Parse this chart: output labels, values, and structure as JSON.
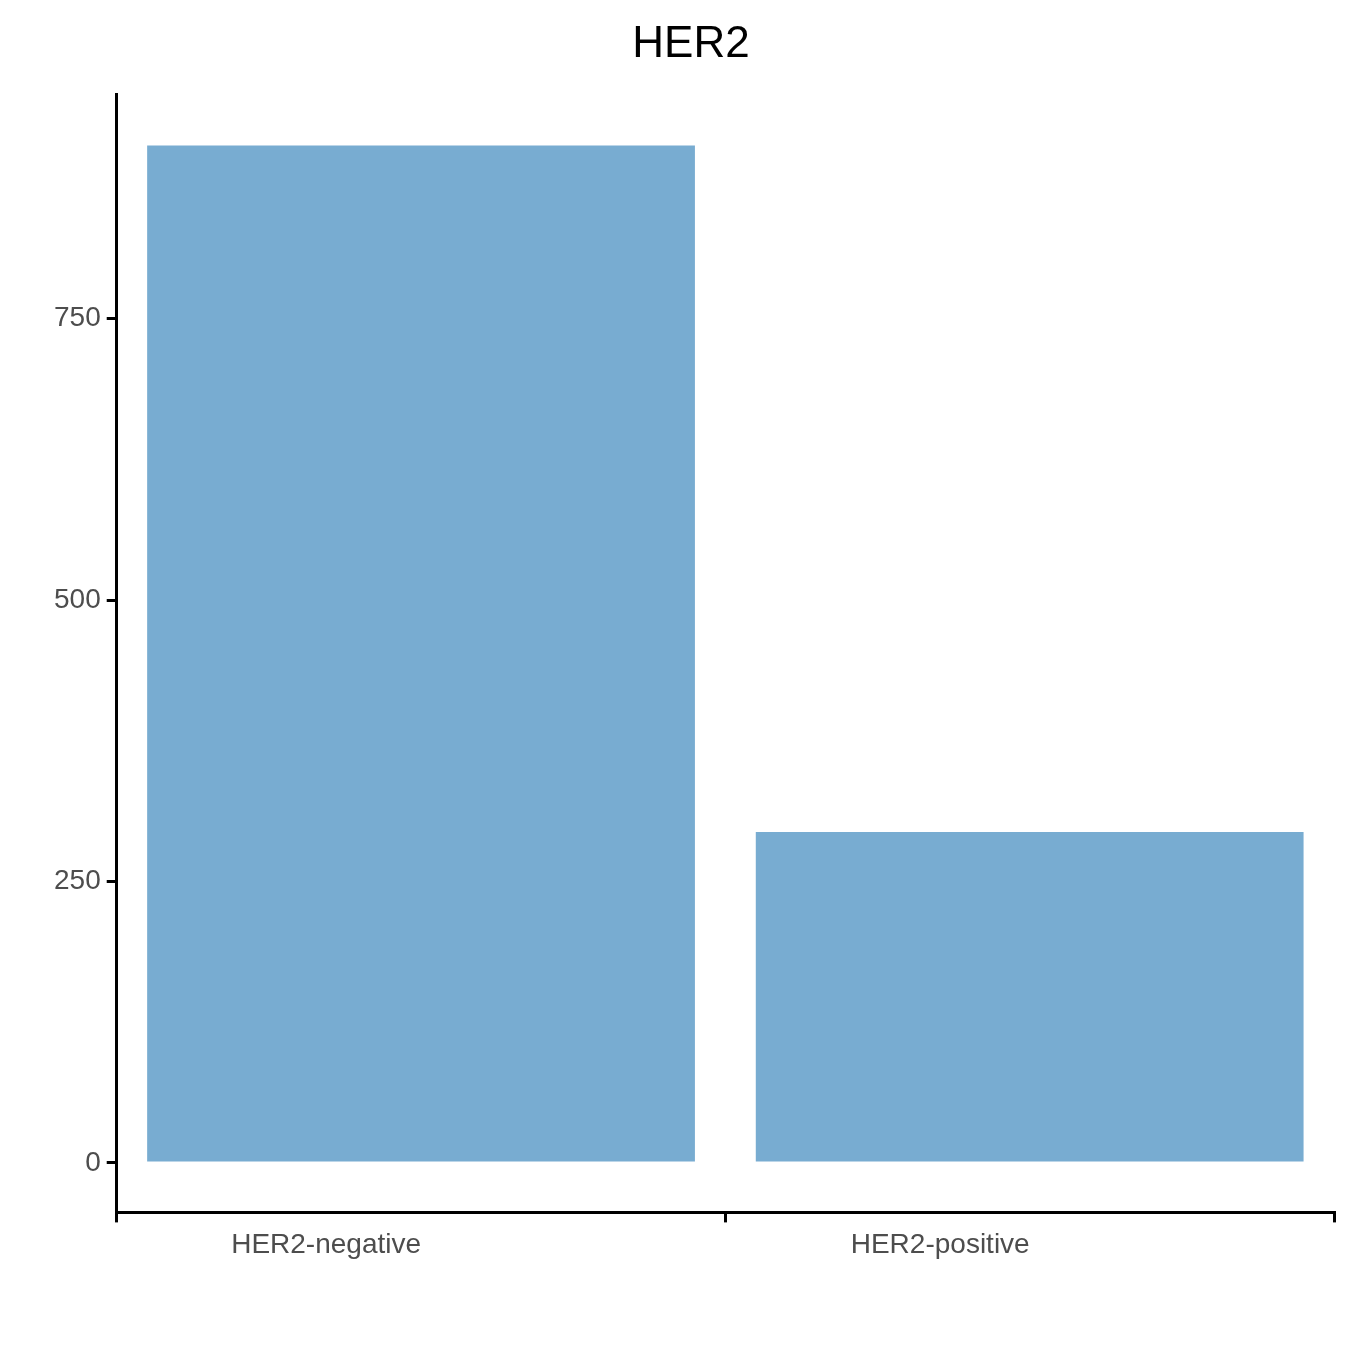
{
  "chart_data": {
    "type": "bar",
    "title": "HER2",
    "categories": [
      "HER2-negative",
      "HER2-positive"
    ],
    "values": [
      904,
      294
    ],
    "color": "#78acd1",
    "ylim": [
      -44,
      949
    ],
    "yticks": [
      0,
      250,
      500,
      750
    ],
    "grid": false,
    "legend": false
  }
}
